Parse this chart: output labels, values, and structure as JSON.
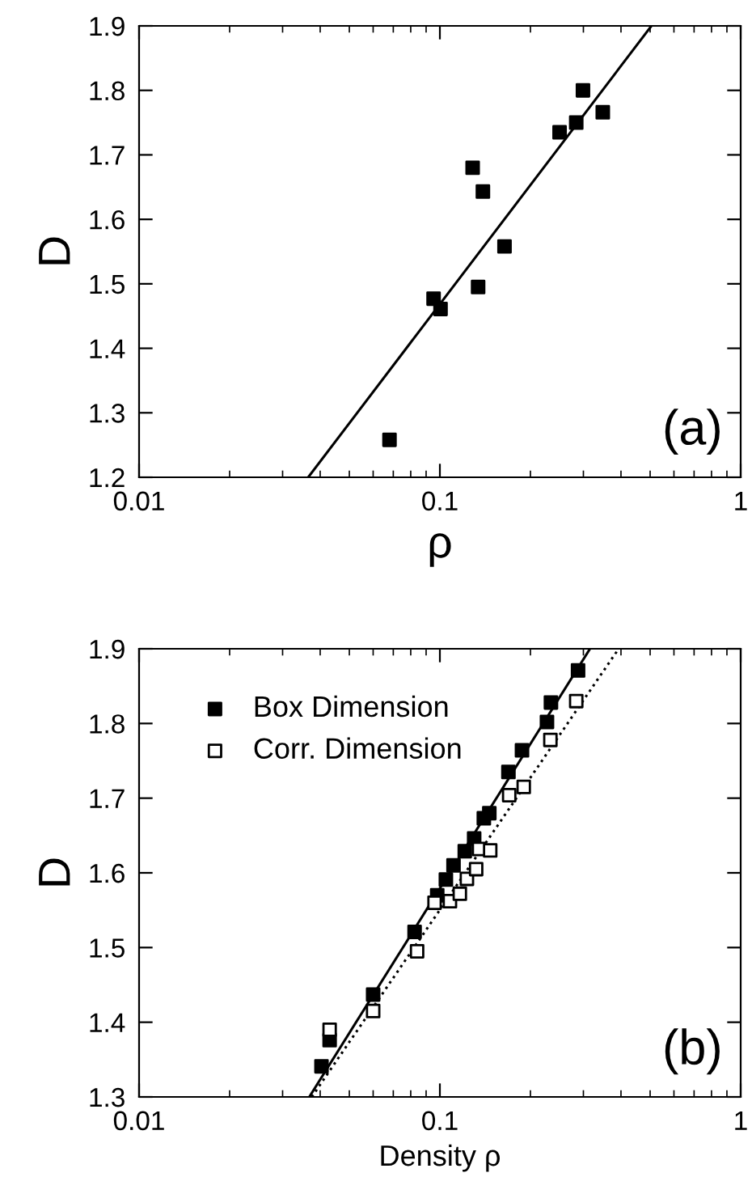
{
  "chart_data": [
    {
      "type": "scatter",
      "xlabel": "ρ",
      "ylabel": "D",
      "log": "x",
      "xlim": [
        0.01,
        1
      ],
      "xticks": [
        0.01,
        0.1,
        1
      ],
      "ylim": [
        1.2,
        1.9
      ],
      "yticks": [
        1.2,
        1.3,
        1.4,
        1.5,
        1.6,
        1.7,
        1.8,
        1.9
      ],
      "grid": false,
      "legend": false,
      "annotations": [
        "(a)"
      ],
      "series": [
        {
          "color": "#000000",
          "marker": "square",
          "x": [
            0.068,
            0.0953,
            0.1005,
            0.1285,
            0.139,
            0.134,
            0.164,
            0.25,
            0.284,
            0.299,
            0.348
          ],
          "values": [
            1.258,
            1.477,
            1.461,
            1.68,
            1.643,
            1.495,
            1.558,
            1.735,
            1.75,
            1.8,
            1.766
          ]
        },
        {
          "type": "line",
          "color": "#000000",
          "marker": "none",
          "line_style": "solid",
          "x": [
            0.0365,
            0.505
          ],
          "values": [
            1.2,
            1.9
          ]
        }
      ]
    },
    {
      "type": "scatter",
      "xlabel": "Density ρ",
      "ylabel": "D",
      "log": "x",
      "xlim": [
        0.01,
        1
      ],
      "xticks": [
        0.01,
        0.1,
        1
      ],
      "ylim": [
        1.3,
        1.9
      ],
      "yticks": [
        1.3,
        1.4,
        1.5,
        1.6,
        1.7,
        1.8,
        1.9
      ],
      "grid": false,
      "legend": "top left",
      "annotations": [
        "(b)"
      ],
      "series": [
        {
          "name": "Box Dimension",
          "color": "#000000",
          "marker": "square",
          "x": [
            0.0404,
            0.043,
            0.06,
            0.0824,
            0.098,
            0.1047,
            0.111,
            0.121,
            0.13,
            0.14,
            0.146,
            0.169,
            0.1875,
            0.227,
            0.234,
            0.288
          ],
          "values": [
            1.341,
            1.376,
            1.437,
            1.521,
            1.57,
            1.591,
            1.61,
            1.629,
            1.646,
            1.673,
            1.68,
            1.735,
            1.764,
            1.802,
            1.828,
            1.871
          ]
        },
        {
          "name": "Corr. Dimension",
          "color": "#ffffff",
          "marker": "square",
          "x": [
            0.043,
            0.06,
            0.084,
            0.096,
            0.108,
            0.1165,
            0.123,
            0.132,
            0.135,
            0.147,
            0.17,
            0.19,
            0.233,
            0.284
          ],
          "values": [
            1.39,
            1.415,
            1.495,
            1.56,
            1.562,
            1.572,
            1.592,
            1.605,
            1.632,
            1.63,
            1.704,
            1.715,
            1.778,
            1.83
          ]
        },
        {
          "type": "line",
          "color": "#000000",
          "marker": "none",
          "line_style": "solid",
          "x": [
            0.0368,
            0.3155
          ],
          "values": [
            1.3,
            1.9
          ]
        },
        {
          "type": "line",
          "color": "#000000",
          "marker": "none",
          "line_style": "dotted",
          "x": [
            0.0375,
            0.393
          ],
          "values": [
            1.3,
            1.9
          ]
        }
      ]
    }
  ]
}
